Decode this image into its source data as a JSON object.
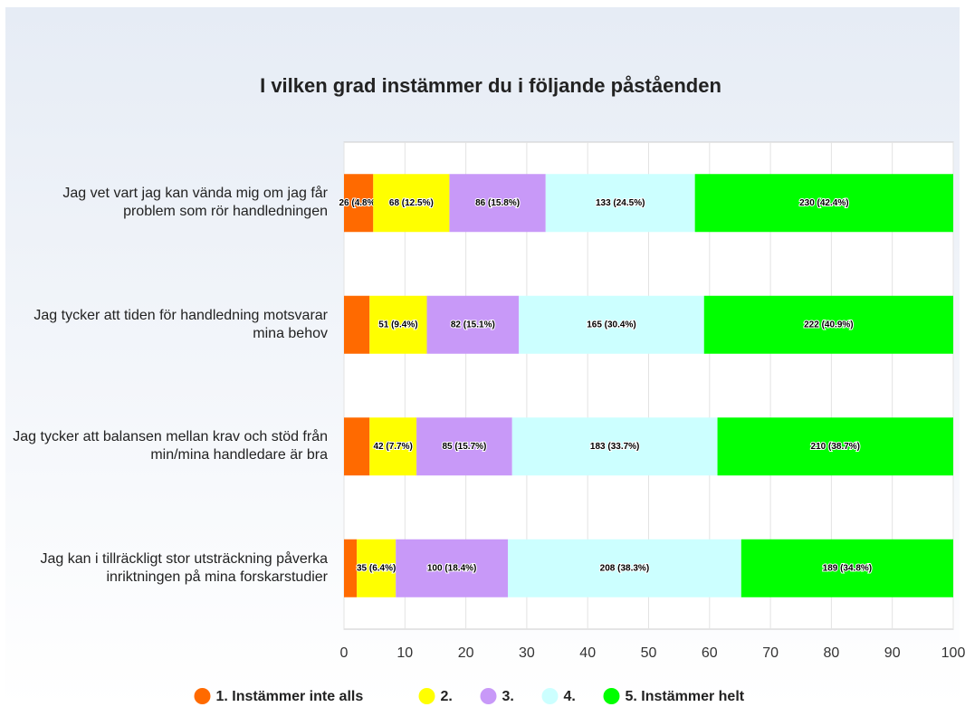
{
  "chart_data": {
    "type": "stacked-bar-horizontal",
    "title": "I vilken grad instämmer du i följande påståenden",
    "categories": [
      "Jag vet vart jag kan vända mig om jag får problem som rör handledningen",
      "Jag tycker att tiden för handledning motsvarar mina behov",
      "Jag tycker att balansen mellan krav och stöd från min/mina handledare är bra",
      "Jag kan i tillräckligt stor utsträckning påverka inriktningen på mina forskarstudier"
    ],
    "series": [
      {
        "name": "1. Instämmer inte alls",
        "color": "#ff6a00",
        "values": [
          4.8,
          4.2,
          4.2,
          2.1
        ],
        "value_labels": [
          "26 (4.8%)",
          null,
          null,
          null
        ]
      },
      {
        "name": "2.",
        "color": "#ffff00",
        "values": [
          12.5,
          9.4,
          7.7,
          6.4
        ],
        "value_labels": [
          "68 (12.5%)",
          "51 (9.4%)",
          "42 (7.7%)",
          "35 (6.4%)"
        ]
      },
      {
        "name": "3.",
        "color": "#c899f8",
        "values": [
          15.8,
          15.1,
          15.7,
          18.4
        ],
        "value_labels": [
          "86 (15.8%)",
          "82 (15.1%)",
          "85 (15.7%)",
          "100 (18.4%)"
        ]
      },
      {
        "name": "4.",
        "color": "#ccffff",
        "values": [
          24.5,
          30.4,
          33.7,
          38.3
        ],
        "value_labels": [
          "133 (24.5%)",
          "165 (30.4%)",
          "183 (33.7%)",
          "208 (38.3%)"
        ]
      },
      {
        "name": "5. Instämmer helt",
        "color": "#00ff00",
        "values": [
          42.4,
          40.9,
          38.7,
          34.8
        ],
        "value_labels": [
          "230 (42.4%)",
          "222 (40.9%)",
          "210 (38.7%)",
          "189 (34.8%)"
        ]
      }
    ],
    "xlim": [
      0,
      100
    ],
    "xticks": [
      0,
      10,
      20,
      30,
      40,
      50,
      60,
      70,
      80,
      90,
      100
    ],
    "grid": true,
    "legend": "bottom"
  }
}
